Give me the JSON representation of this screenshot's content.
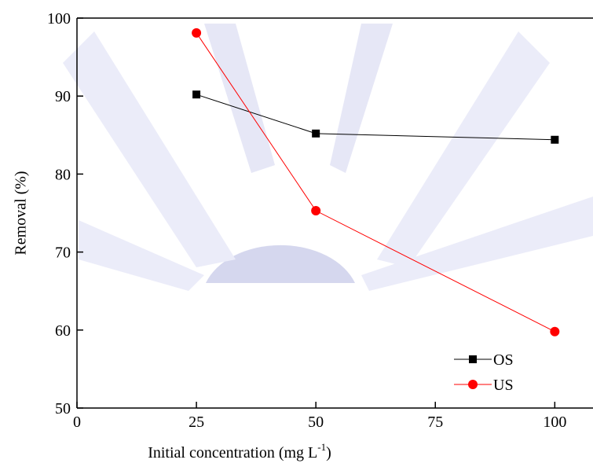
{
  "chart_data": {
    "type": "line",
    "x_label": "Initial concentration (mg L",
    "x_label_sup": "-1",
    "x_label_end": ")",
    "y_label": "Removal (%)",
    "x": [
      25,
      50,
      100
    ],
    "series": [
      {
        "name": "OS",
        "color": "#000000",
        "marker": "square",
        "values": [
          90.2,
          85.2,
          84.4
        ]
      },
      {
        "name": "US",
        "color": "#ff0000",
        "marker": "circle",
        "values": [
          98.1,
          75.3,
          59.8
        ]
      }
    ],
    "xlim": [
      0,
      108
    ],
    "xticks": [
      0,
      25,
      50,
      75,
      100
    ],
    "ylim": [
      50,
      100
    ],
    "yticks": [
      50,
      60,
      70,
      80,
      90,
      100
    ],
    "legend": "lower right"
  }
}
